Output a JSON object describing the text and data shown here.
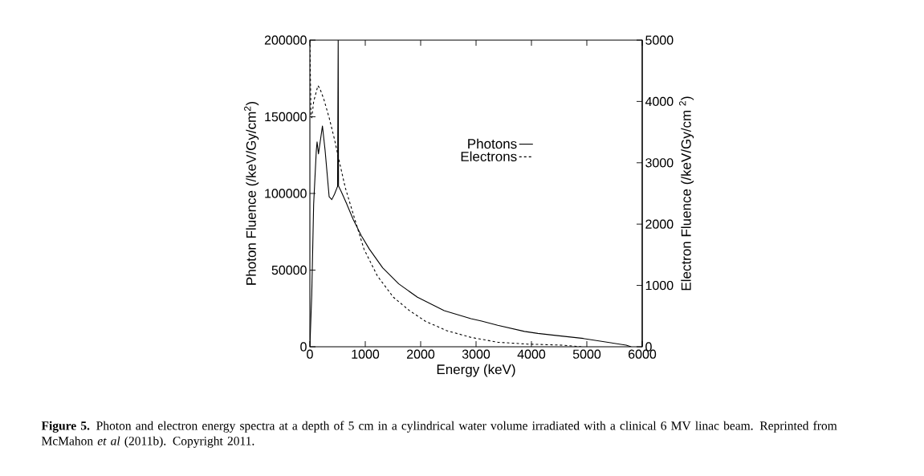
{
  "chart_data": {
    "type": "line",
    "xlabel": "Energy (keV)",
    "ylabel": "Photon Fluence (/keV/Gy/cm$^{2}$)",
    "y2label": "Electron Fluence (/keV/Gy/cm $^{2}$)",
    "xlim": [
      0,
      6000
    ],
    "xticks": [
      0,
      1000,
      2000,
      3000,
      4000,
      5000,
      6000
    ],
    "ylim": [
      0,
      200000
    ],
    "yticks": [
      0,
      50000,
      100000,
      150000,
      200000
    ],
    "y2lim": [
      0,
      5000
    ],
    "y2ticks": [
      0,
      1000,
      2000,
      3000,
      4000,
      5000
    ],
    "legend": "top right",
    "series": [
      {
        "name": "Photons",
        "color": "#000000",
        "line_style": "solid",
        "x": [
          0,
          34,
          68,
          116,
          130,
          155,
          227,
          275,
          348,
          396,
          444,
          493,
          500,
          511,
          517,
          565,
          662,
          783,
          928,
          1072,
          1314,
          1604,
          1942,
          2425,
          2908,
          3101,
          3391,
          3874,
          4116,
          4406,
          4937,
          5710,
          5800
        ],
        "values": [
          0,
          34000,
          93000,
          128000,
          133600,
          125800,
          144000,
          128000,
          97800,
          96000,
          99500,
          104000,
          104500,
          200000,
          104800,
          101300,
          93400,
          83000,
          72500,
          63800,
          51500,
          41000,
          32300,
          23600,
          18300,
          16750,
          14000,
          10000,
          8700,
          7500,
          5400,
          1000,
          0
        ]
      },
      {
        "name": "Electrons",
        "color": "#000000",
        "line_style": "dashed",
        "axis": "y2",
        "x": [
          0,
          19,
          34,
          68,
          145,
          179,
          251,
          348,
          444,
          517,
          638,
          783,
          976,
          1217,
          1507,
          1797,
          2087,
          2473,
          2908,
          3391,
          3923,
          4551,
          4900
        ],
        "values": [
          5000,
          3777,
          3734,
          3996,
          4258,
          4214,
          4039,
          3734,
          3384,
          3079,
          2598,
          2162,
          1594,
          1157,
          808,
          590,
          415,
          262,
          153,
          74,
          44,
          26,
          0
        ]
      }
    ],
    "annotations": [
      "**Figure 5.** Photon and electron energy spectra at a depth of 5 cm in a cylindrical water volume irradiated with a clinical 6 MV linac beam. Reprinted from McMahon *et al* (2011b). Copyright 2011."
    ]
  }
}
